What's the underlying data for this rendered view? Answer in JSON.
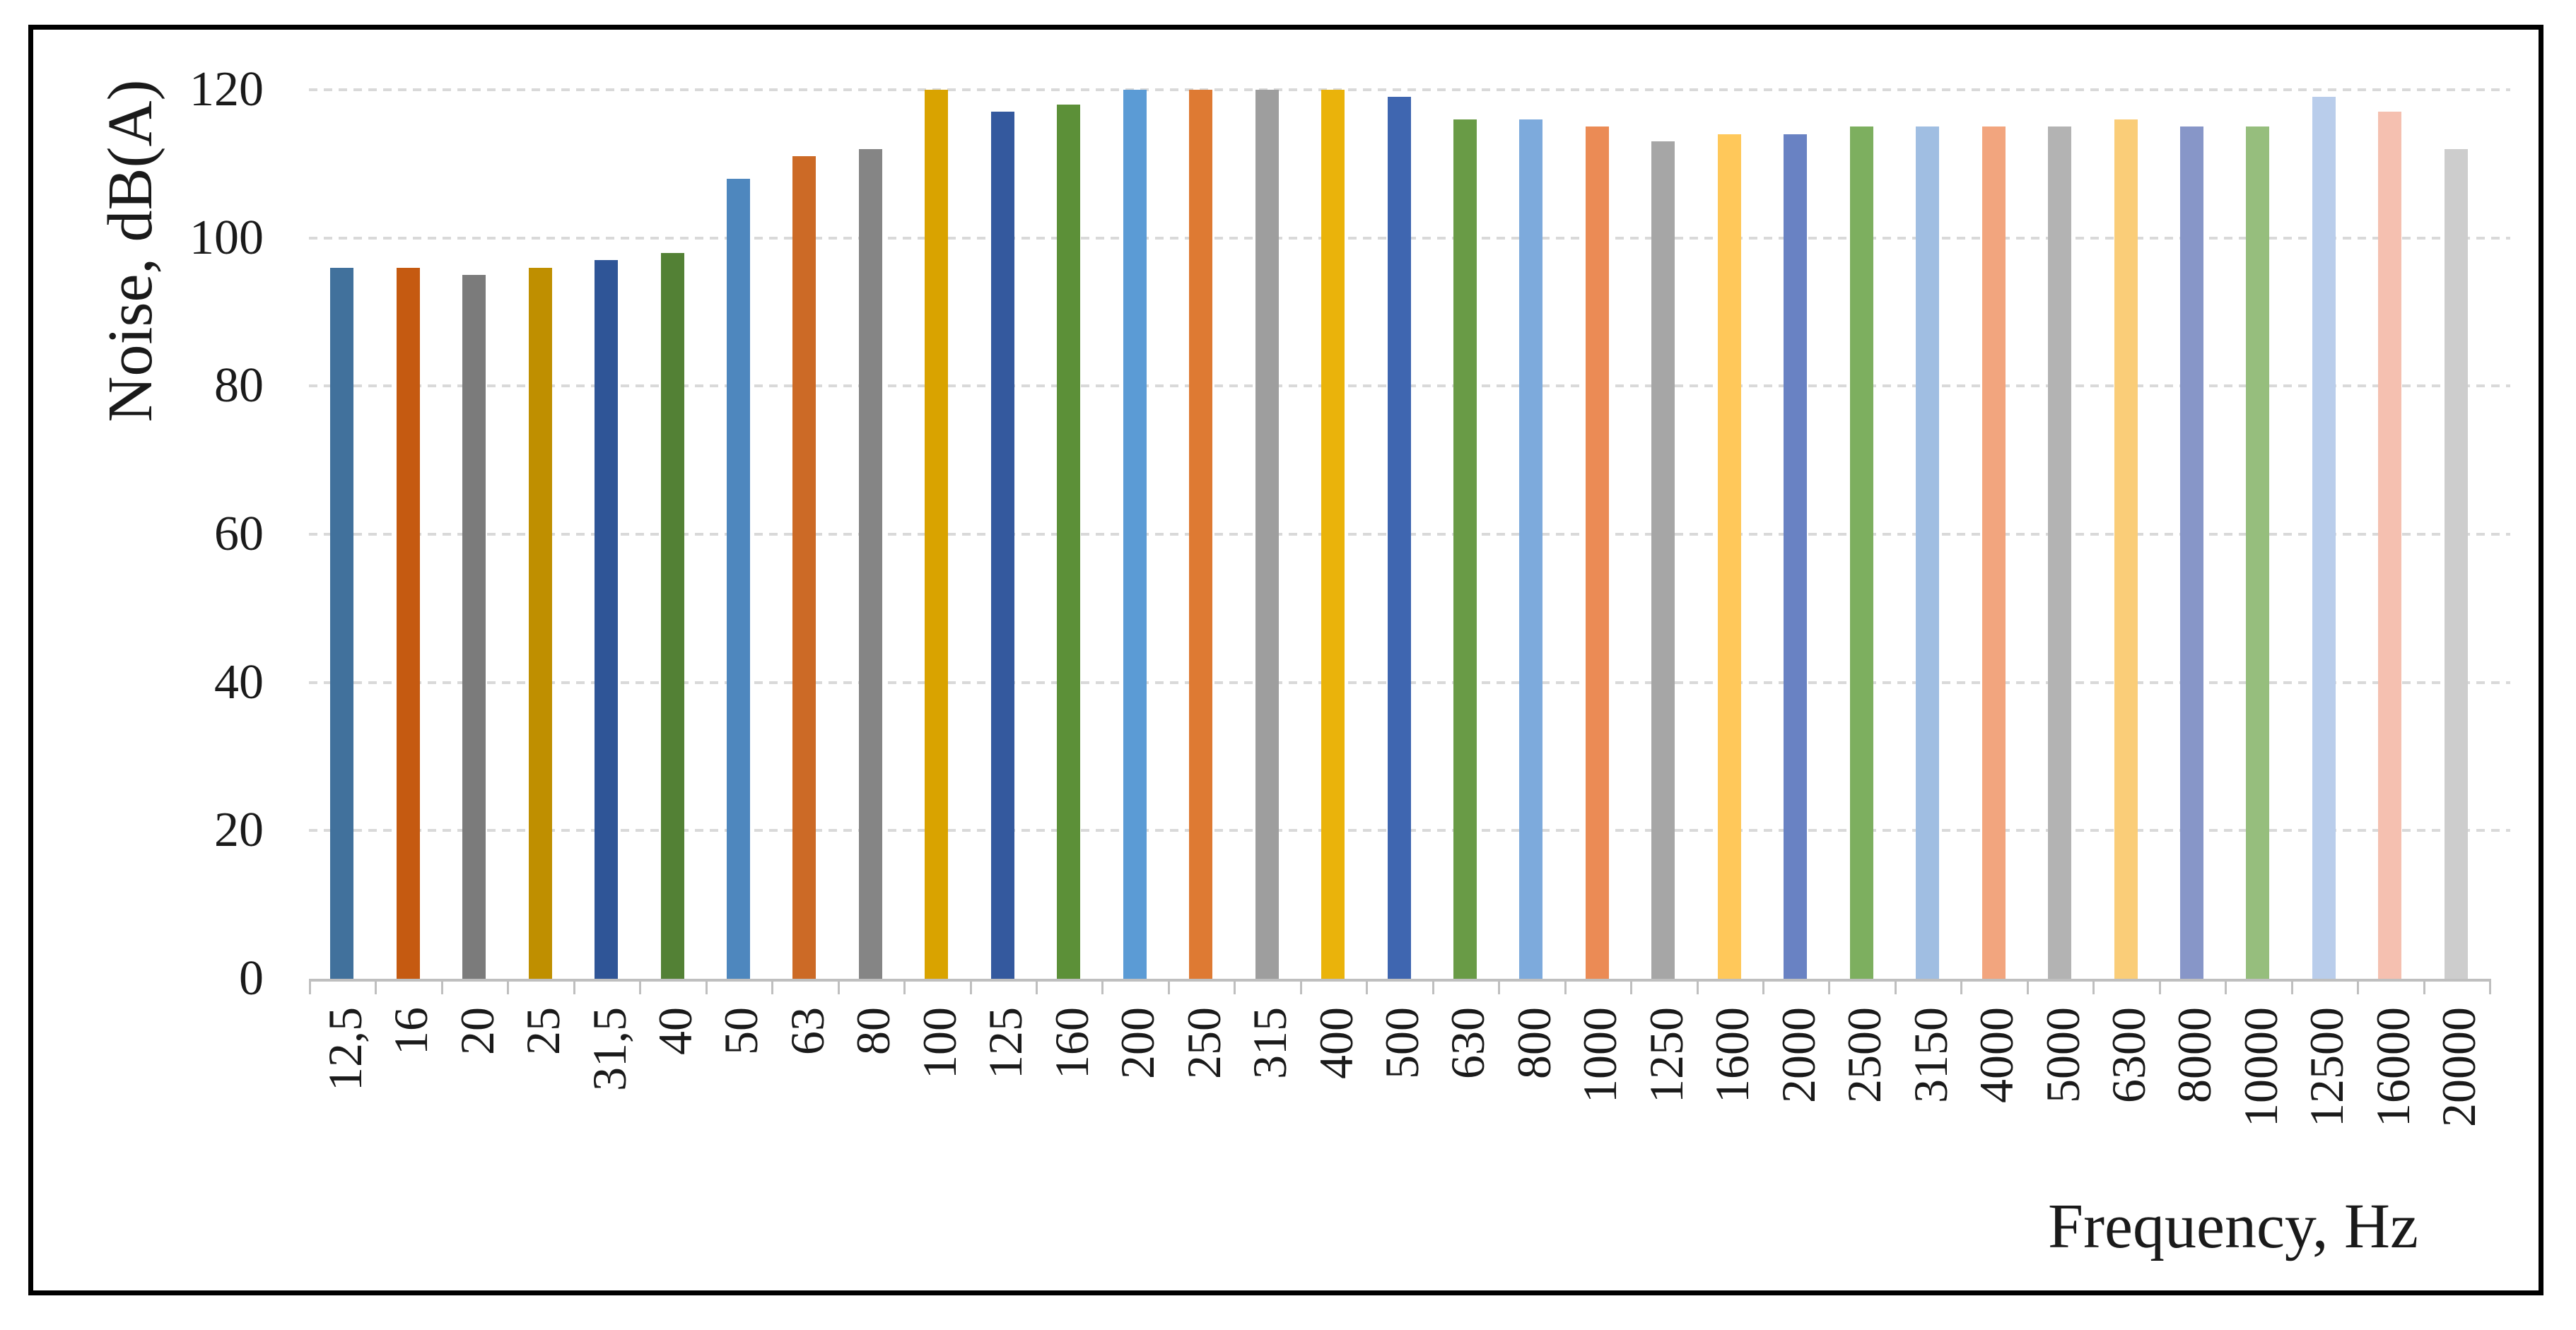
{
  "figure": {
    "background_color": "#ffffff",
    "border_color": "#000000"
  },
  "chart_data": {
    "type": "bar",
    "title": "",
    "xlabel": "Frequency, Hz",
    "ylabel": "Noise, dB(A)",
    "ylim": [
      0,
      120
    ],
    "y_ticks": [
      0,
      20,
      40,
      60,
      80,
      100,
      120
    ],
    "grid": "horizontal dashed",
    "gridline_color": "#d9d9d9",
    "axis_line_color": "#bfbfbf",
    "legend_position": "none",
    "x_label_rotation_degrees": 90,
    "categories": [
      "12,5",
      "16",
      "20",
      "25",
      "31,5",
      "40",
      "50",
      "63",
      "80",
      "100",
      "125",
      "160",
      "200",
      "250",
      "315",
      "400",
      "500",
      "630",
      "800",
      "1000",
      "1250",
      "1600",
      "2000",
      "2500",
      "3150",
      "4000",
      "5000",
      "6300",
      "8000",
      "10000",
      "12500",
      "16000",
      "20000"
    ],
    "values": [
      96,
      96,
      95,
      96,
      97,
      98,
      108,
      111,
      112,
      120,
      117,
      118,
      120,
      120,
      120,
      120,
      119,
      116,
      116,
      115,
      113,
      114,
      114,
      115,
      115,
      115,
      115,
      116,
      115,
      115,
      119,
      117,
      112
    ],
    "bar_colors": [
      "#41719C",
      "#C55A11",
      "#7B7B7B",
      "#BF8F00",
      "#2F5597",
      "#538135",
      "#4E87BE",
      "#CC6A26",
      "#858585",
      "#D9A300",
      "#34599E",
      "#5C9038",
      "#5B9BD5",
      "#DE7A33",
      "#9E9E9E",
      "#EAB30B",
      "#3F66B0",
      "#699B46",
      "#7DAADC",
      "#EB8B55",
      "#A6A6A6",
      "#FFC85A",
      "#6982C3",
      "#7DAF5F",
      "#A0BEE2",
      "#F2A57E",
      "#B3B3B3",
      "#FACD78",
      "#8796C8",
      "#96BE7D",
      "#B9CDEB",
      "#F5C0B0",
      "#CDCDCD"
    ]
  }
}
